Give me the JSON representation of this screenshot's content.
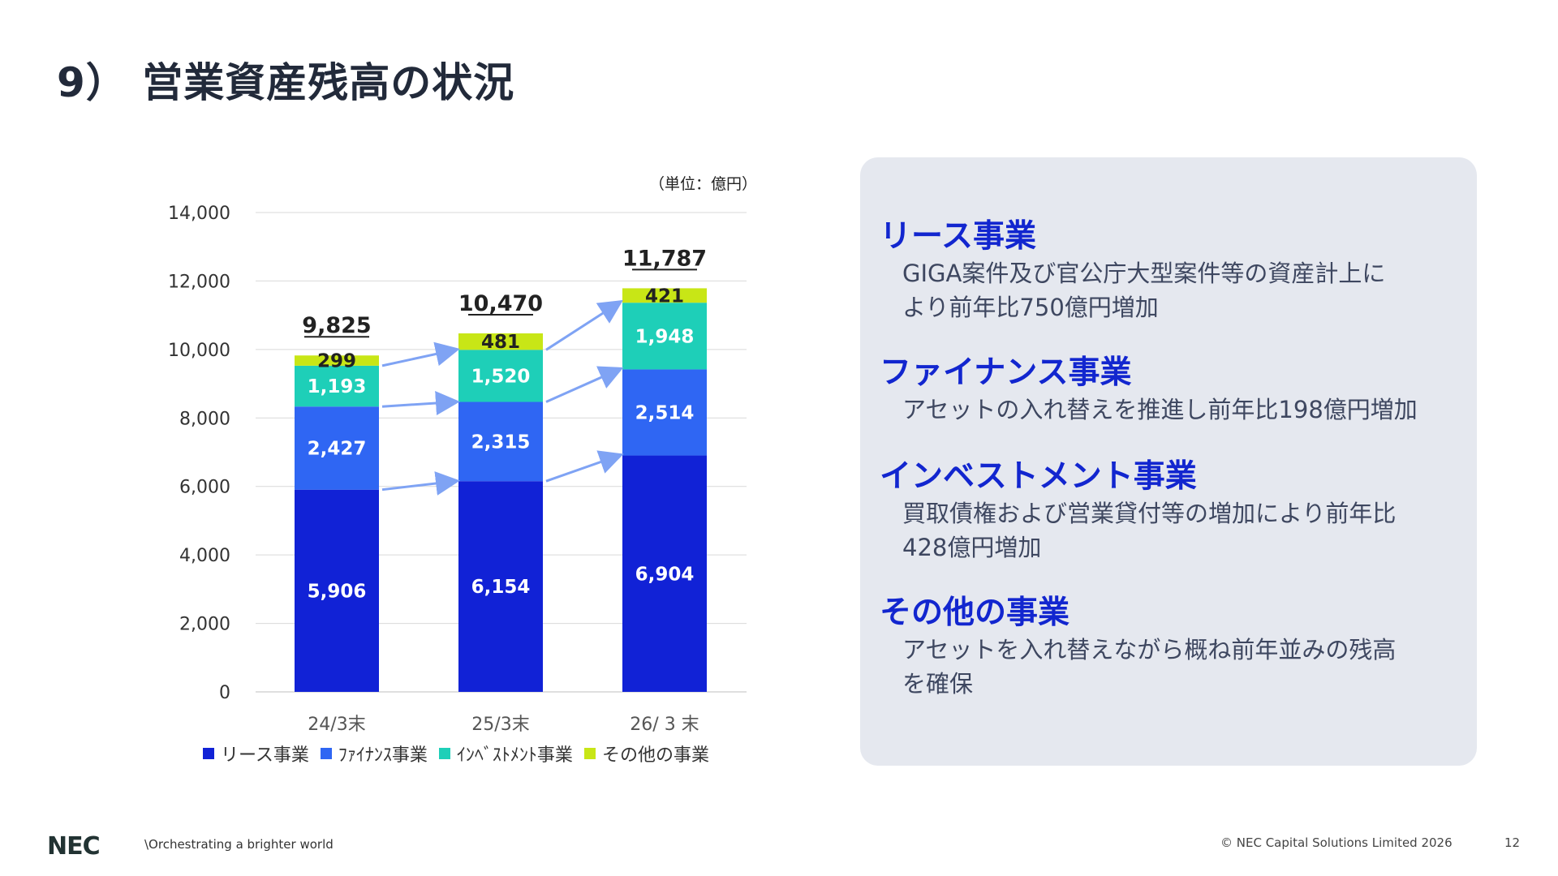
{
  "page": {
    "title": "9） 営業資産残高の状況",
    "unit_label": "（単位：億円）"
  },
  "chart_data": {
    "type": "bar",
    "stacked": true,
    "categories": [
      "24/3末",
      "25/3末",
      "26/ 3 末"
    ],
    "series": [
      {
        "name": "リース事業",
        "color": "#1122d6",
        "values": [
          5906,
          6154,
          6904
        ],
        "labels": [
          "5,906",
          "6,154",
          "6,904"
        ]
      },
      {
        "name": "ﾌｧｲﾅﾝｽ事業",
        "color": "#2f66f3",
        "values": [
          2427,
          2315,
          2514
        ],
        "labels": [
          "2,427",
          "2,315",
          "2,514"
        ]
      },
      {
        "name": "ｲﾝﾍﾞｽﾄﾒﾝﾄ事業",
        "color": "#1ecfb8",
        "values": [
          1193,
          1520,
          1948
        ],
        "labels": [
          "1,193",
          "1,520",
          "1,948"
        ]
      },
      {
        "name": "その他の事業",
        "color": "#c8e616",
        "values": [
          299,
          481,
          421
        ],
        "labels": [
          "299",
          "481",
          "421"
        ]
      }
    ],
    "totals": [
      "9,825",
      "10,470",
      "11,787"
    ],
    "yticks": [
      "0",
      "2,000",
      "4,000",
      "6,000",
      "8,000",
      "10,000",
      "12,000",
      "14,000"
    ],
    "ylim": [
      0,
      14000
    ],
    "grid": true,
    "legend_position": "bottom",
    "arrow_color": "#7fa3f4"
  },
  "panel": {
    "sections": [
      {
        "heading": "リース事業",
        "body": "GIGA案件及び官公庁大型案件等の資産計上に\nより前年比750億円増加"
      },
      {
        "heading": "ファイナンス事業",
        "body": "アセットの入れ替えを推進し前年比198億円増加"
      },
      {
        "heading": "インベストメント事業",
        "body": "買取債権および営業貸付等の増加により前年比\n428億円増加"
      },
      {
        "heading": "その他の事業",
        "body": "アセットを入れ替えながら概ね前年並みの残高\nを確保"
      }
    ]
  },
  "footer": {
    "logo": "NEC",
    "tagline": "\\Orchestrating a brighter world",
    "copyright": "© NEC Capital Solutions Limited 2026",
    "page_number": "12"
  }
}
